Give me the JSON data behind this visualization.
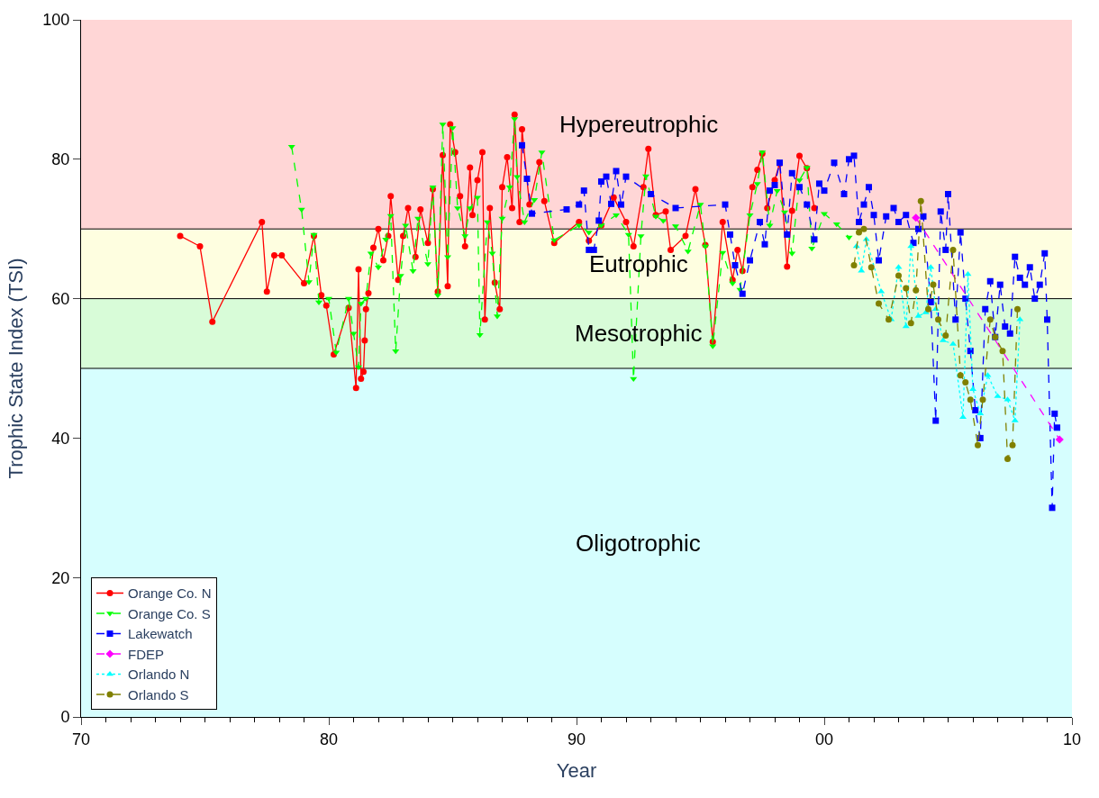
{
  "chart_data": {
    "type": "line",
    "xlabel": "Year",
    "ylabel": "Trophic State Index (TSI)",
    "xlim": [
      1970,
      2010
    ],
    "ylim": [
      0,
      100
    ],
    "xticks": [
      {
        "value": 1970,
        "label": "70"
      },
      {
        "value": 1971,
        "label": null
      },
      {
        "value": 1972,
        "label": null
      },
      {
        "value": 1973,
        "label": null
      },
      {
        "value": 1974,
        "label": null
      },
      {
        "value": 1975,
        "label": null
      },
      {
        "value": 1976,
        "label": null
      },
      {
        "value": 1977,
        "label": null
      },
      {
        "value": 1978,
        "label": null
      },
      {
        "value": 1979,
        "label": null
      },
      {
        "value": 1980,
        "label": "80"
      },
      {
        "value": 1981,
        "label": null
      },
      {
        "value": 1982,
        "label": null
      },
      {
        "value": 1983,
        "label": null
      },
      {
        "value": 1984,
        "label": null
      },
      {
        "value": 1985,
        "label": null
      },
      {
        "value": 1986,
        "label": null
      },
      {
        "value": 1987,
        "label": null
      },
      {
        "value": 1988,
        "label": null
      },
      {
        "value": 1989,
        "label": null
      },
      {
        "value": 1990,
        "label": "90"
      },
      {
        "value": 1991,
        "label": null
      },
      {
        "value": 1992,
        "label": null
      },
      {
        "value": 1993,
        "label": null
      },
      {
        "value": 1994,
        "label": null
      },
      {
        "value": 1995,
        "label": null
      },
      {
        "value": 1996,
        "label": null
      },
      {
        "value": 1997,
        "label": null
      },
      {
        "value": 1998,
        "label": null
      },
      {
        "value": 1999,
        "label": null
      },
      {
        "value": 2000,
        "label": "00"
      },
      {
        "value": 2001,
        "label": null
      },
      {
        "value": 2002,
        "label": null
      },
      {
        "value": 2003,
        "label": null
      },
      {
        "value": 2004,
        "label": null
      },
      {
        "value": 2005,
        "label": null
      },
      {
        "value": 2006,
        "label": null
      },
      {
        "value": 2007,
        "label": null
      },
      {
        "value": 2008,
        "label": null
      },
      {
        "value": 2009,
        "label": null
      },
      {
        "value": 2010,
        "label": "10"
      }
    ],
    "yticks": [
      0,
      20,
      40,
      60,
      80,
      100
    ],
    "grid": false,
    "legend": "bottom left",
    "bands": [
      {
        "axis": "y",
        "from": 70,
        "to": 100,
        "label": "Hypereutrophic",
        "color": "#ffd6d6"
      },
      {
        "axis": "y",
        "from": 60,
        "to": 70,
        "label": "Eutrophic",
        "color": "#fefee0"
      },
      {
        "axis": "y",
        "from": 50,
        "to": 60,
        "label": "Mesotrophic",
        "color": "#d8fcd8"
      },
      {
        "axis": "y",
        "from": 0,
        "to": 50,
        "label": "Oligotrophic",
        "color": "#d6fefe"
      }
    ],
    "ref_lines": [
      {
        "axis": "y",
        "value": 70,
        "color": "#000000"
      },
      {
        "axis": "y",
        "value": 60,
        "color": "#000000"
      },
      {
        "axis": "y",
        "value": 50,
        "color": "#000000"
      }
    ],
    "series": [
      {
        "name": "Orange Co. N",
        "color": "#ff0000",
        "marker": "circle",
        "line_style": "solid",
        "x": [
          1974.0,
          1974.8,
          1975.3,
          1977.3,
          1977.5,
          1977.8,
          1978.1,
          1979.0,
          1979.4,
          1979.7,
          1979.9,
          1980.2,
          1980.8,
          1981.1,
          1981.2,
          1981.3,
          1981.4,
          1981.45,
          1981.5,
          1981.6,
          1981.8,
          1982.0,
          1982.2,
          1982.4,
          1982.5,
          1982.8,
          1983.0,
          1983.2,
          1983.5,
          1983.7,
          1984.0,
          1984.2,
          1984.4,
          1984.6,
          1984.8,
          1984.9,
          1985.1,
          1985.3,
          1985.5,
          1985.7,
          1985.8,
          1986.0,
          1986.2,
          1986.3,
          1986.5,
          1986.7,
          1986.9,
          1987.0,
          1987.2,
          1987.4,
          1987.5,
          1987.7,
          1987.8,
          1988.1,
          1988.5,
          1988.7,
          1989.1,
          1990.1,
          1990.5,
          1991.0,
          1991.5,
          1992.0,
          1992.3,
          1992.7,
          1992.9,
          1993.2,
          1993.6,
          1993.8,
          1994.4,
          1994.8,
          1995.2,
          1995.5,
          1995.9,
          1996.3,
          1996.5,
          1996.7,
          1997.1,
          1997.3,
          1997.5,
          1997.7,
          1998.0,
          1998.2,
          1998.5,
          1998.7,
          1999.0,
          1999.3,
          1999.6
        ],
        "values": [
          69,
          67.5,
          56.7,
          71,
          61,
          66.2,
          66.2,
          62.2,
          69,
          60.5,
          59,
          52,
          58.7,
          47.2,
          64.2,
          48.5,
          49.5,
          54,
          58.5,
          60.8,
          67.3,
          70,
          65.5,
          69,
          74.7,
          62.7,
          69,
          73,
          66,
          72.8,
          68,
          75.7,
          61,
          80.6,
          61.8,
          85,
          81,
          74.7,
          67.5,
          78.8,
          72,
          77,
          81,
          57,
          73,
          62.3,
          58.5,
          76,
          80.3,
          73,
          86.4,
          71,
          84.3,
          73.5,
          79.6,
          74,
          68,
          71,
          68.3,
          70.5,
          74.5,
          71,
          67.5,
          76,
          81.5,
          72,
          72.5,
          67,
          69,
          75.7,
          67.7,
          53.8,
          71,
          62.7,
          67,
          64,
          76,
          78.5,
          80.8,
          73,
          77,
          79.4,
          64.6,
          72.6,
          80.5,
          78.7,
          73
        ]
      },
      {
        "name": "Orange Co. S",
        "color": "#00ff00",
        "marker": "triangle-down",
        "line_style": "dashed",
        "x": [
          1978.5,
          1978.9,
          1979.2,
          1979.4,
          1979.6,
          1980.0,
          1980.3,
          1980.8,
          1981.0,
          1981.2,
          1981.3,
          1981.5,
          1981.7,
          1982.0,
          1982.3,
          1982.5,
          1982.7,
          1982.9,
          1983.1,
          1983.4,
          1983.6,
          1984.0,
          1984.2,
          1984.4,
          1984.6,
          1984.8,
          1985.0,
          1985.2,
          1985.5,
          1985.7,
          1986.0,
          1986.1,
          1986.4,
          1986.6,
          1986.8,
          1987.0,
          1987.3,
          1987.5,
          1987.6,
          1987.9,
          1988.3,
          1988.6,
          1989.1,
          1990.1,
          1990.5,
          1991.0,
          1991.6,
          1992.1,
          1992.3,
          1992.6,
          1992.8,
          1993.2,
          1993.5,
          1994.0,
          1994.5,
          1995.0,
          1995.2,
          1995.5,
          1995.9,
          1996.3,
          1996.6,
          1997.0,
          1997.3,
          1997.5,
          1997.8,
          1998.1,
          1998.4,
          1998.7,
          1999.0,
          1999.3,
          1999.5,
          2000.0,
          2000.5,
          2001.0
        ],
        "values": [
          81.8,
          72.8,
          62.4,
          69.2,
          59.5,
          60,
          52.3,
          60,
          55,
          50.2,
          59.3,
          60,
          66.5,
          64.5,
          68.5,
          71.9,
          52.5,
          63.3,
          70.5,
          64,
          71.5,
          65,
          76,
          60.5,
          85,
          66,
          84.5,
          73,
          69,
          73,
          74.5,
          54.8,
          71,
          66.5,
          57.5,
          71.5,
          76,
          85.8,
          77.5,
          71,
          74.2,
          81,
          68.4,
          70.5,
          69.5,
          70.5,
          72,
          69.2,
          48.5,
          69,
          77.6,
          71.8,
          71.2,
          70.4,
          66.8,
          73.5,
          67.5,
          53.2,
          66.6,
          62.2,
          61.3,
          72,
          76.5,
          81,
          70.5,
          75.5,
          72.4,
          66.5,
          77,
          78.8,
          67.2,
          72.2,
          70.7,
          68.8
        ]
      },
      {
        "name": "Lakewatch",
        "color": "#0000ff",
        "marker": "square",
        "line_style": "dashed",
        "x": [
          1987.8,
          1988.0,
          1988.2,
          1989.6,
          1990.1,
          1990.3,
          1990.5,
          1990.7,
          1990.9,
          1991.0,
          1991.2,
          1991.4,
          1991.6,
          1991.8,
          1992.0,
          1993.0,
          1994.0,
          1996.0,
          1996.2,
          1996.4,
          1996.7,
          1997.0,
          1997.4,
          1997.6,
          1997.8,
          1998.0,
          1998.2,
          1998.5,
          1998.7,
          1999.0,
          1999.3,
          1999.6,
          1999.8,
          2000.0,
          2000.4,
          2000.8,
          2001.0,
          2001.2,
          2001.4,
          2001.6,
          2001.8,
          2002.0,
          2002.2,
          2002.5,
          2002.8,
          2003.0,
          2003.3,
          2003.6,
          2003.8,
          2004.0,
          2004.3,
          2004.5,
          2004.7,
          2004.9,
          2005.0,
          2005.3,
          2005.5,
          2005.7,
          2005.9,
          2006.1,
          2006.3,
          2006.5,
          2006.7,
          2006.9,
          2007.1,
          2007.3,
          2007.5,
          2007.7,
          2007.9,
          2008.1,
          2008.3,
          2008.5,
          2008.7,
          2008.9,
          2009.0,
          2009.2,
          2009.3,
          2009.4
        ],
        "values": [
          82,
          77.2,
          72.2,
          72.8,
          73.5,
          75.5,
          67,
          67,
          71.2,
          76.8,
          77.5,
          73.6,
          78.3,
          73.5,
          77.5,
          75,
          73,
          73.5,
          69.2,
          64.8,
          60.7,
          65.5,
          71,
          67.8,
          75.5,
          76.3,
          79.5,
          69.2,
          78,
          76,
          73.5,
          68.5,
          76.5,
          75.5,
          79.5,
          75,
          80,
          80.5,
          71,
          73.5,
          76,
          72,
          65.5,
          71.8,
          73,
          71,
          72,
          68,
          70,
          71.8,
          59.5,
          42.5,
          72.5,
          67,
          75,
          57,
          69.5,
          60,
          52.5,
          44,
          40,
          58.5,
          62.5,
          54.5,
          62,
          56,
          55,
          66,
          63,
          62,
          64.5,
          60,
          62,
          66.5,
          57,
          30,
          43.5,
          41.5
        ]
      },
      {
        "name": "FDEP",
        "color": "#ff00ff",
        "marker": "diamond",
        "line_style": "dashed",
        "x": [
          2003.7,
          2009.5
        ],
        "values": [
          71.6,
          39.8
        ]
      },
      {
        "name": "Orlando N",
        "color": "#00ffff",
        "marker": "triangle-up",
        "line_style": "dotted",
        "x": [
          2001.3,
          2001.5,
          2001.7,
          2002.3,
          2002.7,
          2003.0,
          2003.3,
          2003.5,
          2003.8,
          2004.1,
          2004.3,
          2004.5,
          2004.8,
          2005.2,
          2005.6,
          2005.8,
          2006.0,
          2006.3,
          2006.6,
          2007.0,
          2007.4,
          2007.7,
          2007.9
        ],
        "values": [
          67.5,
          64,
          68.5,
          61,
          57,
          64.5,
          56,
          67.5,
          57.5,
          58,
          64.5,
          58.5,
          54,
          53.5,
          43,
          63.5,
          47,
          43.5,
          49,
          46,
          45.5,
          42.5,
          57
        ]
      },
      {
        "name": "Orlando S",
        "color": "#808000",
        "marker": "circle",
        "line_style": "dashed",
        "x": [
          2001.2,
          2001.4,
          2001.6,
          2001.9,
          2002.2,
          2002.6,
          2003.0,
          2003.3,
          2003.5,
          2003.7,
          2003.9,
          2004.2,
          2004.4,
          2004.6,
          2004.9,
          2005.2,
          2005.5,
          2005.7,
          2005.9,
          2006.2,
          2006.4,
          2006.7,
          2006.9,
          2007.2,
          2007.4,
          2007.6,
          2007.8
        ],
        "values": [
          64.8,
          69.5,
          70,
          64.5,
          59.3,
          57,
          63.3,
          61.5,
          56.5,
          61.2,
          74,
          58.5,
          62,
          57,
          54.7,
          67,
          49,
          48,
          45.5,
          39,
          45.5,
          57,
          54.5,
          52.5,
          37,
          39,
          58.5
        ]
      }
    ]
  }
}
